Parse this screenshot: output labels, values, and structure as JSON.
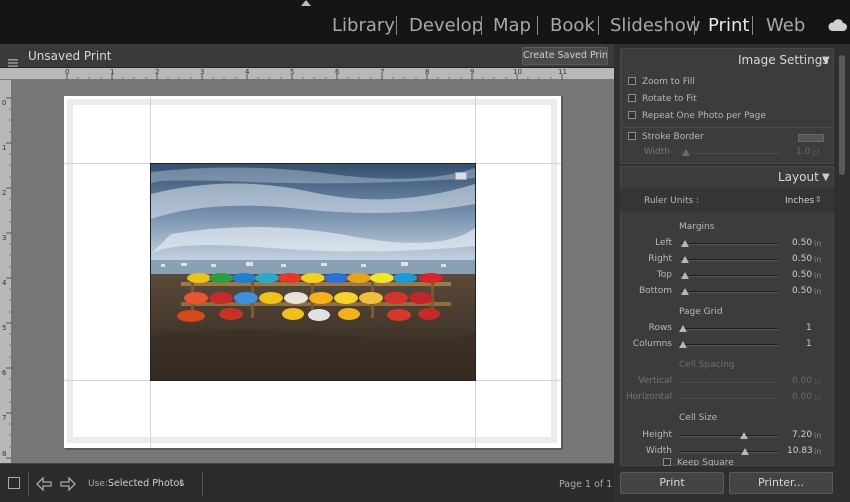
{
  "top_nav": {
    "modules": [
      "Library",
      "Develop",
      "Map",
      "Book",
      "Slideshow",
      "Print",
      "Web"
    ],
    "active": "Print"
  },
  "header": {
    "title": "Unsaved Print",
    "create_saved_label": "Create Saved Print"
  },
  "ruler": {
    "top_numbers": [
      "0",
      "1",
      "2",
      "3",
      "4",
      "5",
      "6",
      "7",
      "8",
      "9",
      "10",
      "11"
    ],
    "left_numbers": [
      "0",
      "1",
      "2",
      "3",
      "4",
      "5",
      "6",
      "7",
      "8"
    ]
  },
  "toolbar": {
    "use_label": "Use:",
    "use_value": "Selected Photos",
    "page_count": "Page 1 of 1"
  },
  "image_settings": {
    "title": "Image Settings",
    "options": [
      {
        "label": "Zoom to Fill",
        "checked": false
      },
      {
        "label": "Rotate to Fit",
        "checked": false
      },
      {
        "label": "Repeat One Photo per Page",
        "checked": false
      }
    ],
    "stroke_border_label": "Stroke Border",
    "width_label": "Width",
    "width_value": "1.0",
    "width_unit": "pt"
  },
  "layout": {
    "title": "Layout",
    "ruler_units_label": "Ruler Units :",
    "ruler_units_value": "Inches",
    "margins_heading": "Margins",
    "margins": [
      {
        "label": "Left",
        "value": "0.50",
        "unit": "in",
        "level": 0.05
      },
      {
        "label": "Right",
        "value": "0.50",
        "unit": "in",
        "level": 0.05
      },
      {
        "label": "Top",
        "value": "0.50",
        "unit": "in",
        "level": 0.05
      },
      {
        "label": "Bottom",
        "value": "0.50",
        "unit": "in",
        "level": 0.05
      }
    ],
    "page_grid_heading": "Page Grid",
    "page_grid": [
      {
        "label": "Rows",
        "value": "1",
        "level": 0.0
      },
      {
        "label": "Columns",
        "value": "1",
        "level": 0.0
      }
    ],
    "cell_spacing_heading": "Cell Spacing",
    "cell_spacing": [
      {
        "label": "Vertical",
        "value": "0.00",
        "unit": "in"
      },
      {
        "label": "Horizontal",
        "value": "0.00",
        "unit": "in"
      }
    ],
    "cell_size_heading": "Cell Size",
    "cell_size": [
      {
        "label": "Height",
        "value": "7.20",
        "unit": "in",
        "level": 0.6
      },
      {
        "label": "Width",
        "value": "10.83",
        "unit": "in",
        "level": 0.61
      }
    ],
    "keep_square_label": "Keep Square"
  },
  "buttons": {
    "print": "Print",
    "printer": "Printer..."
  },
  "colors": {
    "background": "#1a1a1a",
    "panel": "#2f2f2f",
    "section": "#3c3c3c",
    "canvas": "#767676",
    "active_module": "#e8e8e8"
  },
  "icons": [
    "cloud-icon",
    "menu-icon",
    "prev-arrow-icon",
    "next-arrow-icon",
    "view-toggle-icon",
    "collapse-triangle-icon"
  ]
}
